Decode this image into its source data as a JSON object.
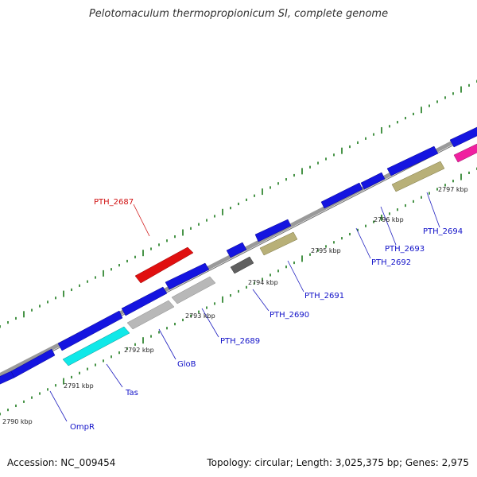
{
  "title": "Pelotomaculum thermopropionicum SI, complete genome",
  "footer": {
    "accession": "Accession: NC_009454",
    "summary": "Topology: circular; Length: 3,025,375 bp; Genes: 2,975"
  },
  "colors": {
    "backbone": "#9a9a9a",
    "tick": "#1a7a1a",
    "blue": "#1515e0",
    "red": "#e01010",
    "cyan": "#10e8e8",
    "lightgray": "#b8b8b8",
    "darkgray": "#606060",
    "khaki": "#b8b078",
    "pink": "#f020a0"
  },
  "kbp_labels": [
    "2790 kbp",
    "2791 kbp",
    "2792 kbp",
    "2793 kbp",
    "2794 kbp",
    "2795 kbp",
    "2796 kbp",
    "2797 kbp"
  ],
  "gene_labels": [
    "PTH_2687",
    "OmpR",
    "Tas",
    "GloB",
    "PTH_2689",
    "PTH_2690",
    "PTH_2691",
    "PTH_2692",
    "PTH_2693",
    "PTH_2694"
  ]
}
